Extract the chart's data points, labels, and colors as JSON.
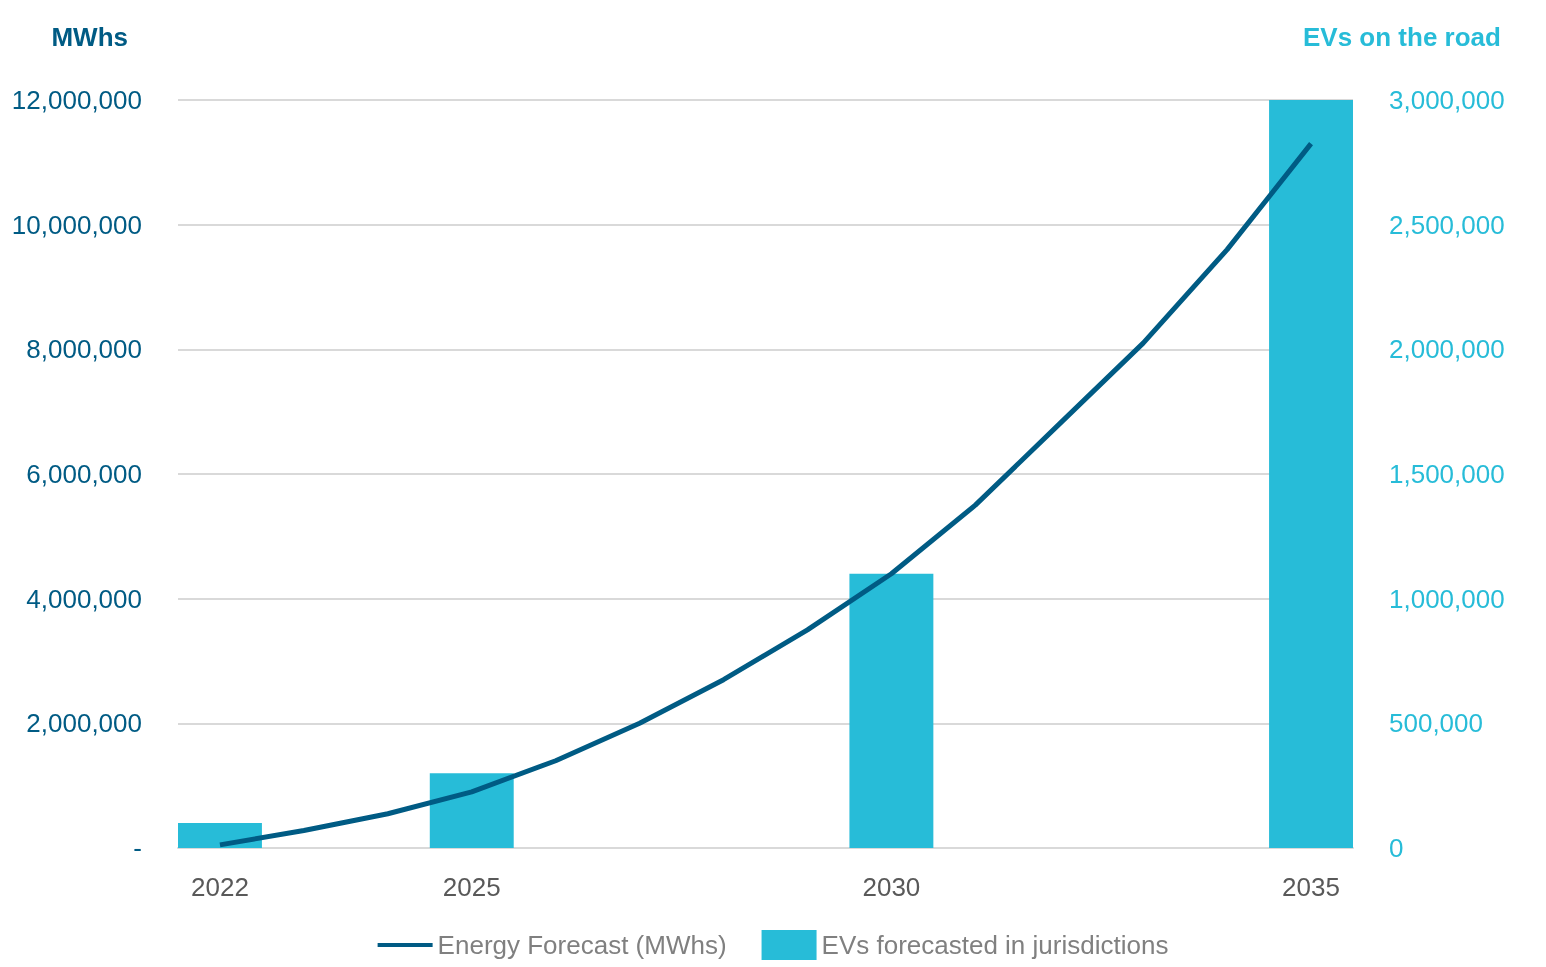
{
  "chart_data": {
    "type": "bar",
    "ylabel": "MWhs",
    "y2label": "EVs on the road",
    "categories": [
      "2022",
      null,
      null,
      "2025",
      null,
      null,
      null,
      null,
      "2030",
      null,
      null,
      null,
      null,
      "2035"
    ],
    "series": [
      {
        "name": "Energy Forecast (MWhs)",
        "type": "line",
        "color": "#005b84",
        "values": [
          50000,
          280000,
          550000,
          900000,
          1400000,
          2000000,
          2700000,
          3500000,
          4400000,
          5500000,
          6800000,
          8100000,
          9600000,
          11300000
        ]
      },
      {
        "name": "EVs forecasted in jurisdictions",
        "axis": "y2",
        "color": "#27bcd8",
        "values": [
          100000,
          null,
          null,
          300000,
          null,
          null,
          null,
          null,
          1100000,
          null,
          null,
          null,
          null,
          3000000
        ]
      }
    ],
    "ylim": [
      0,
      12000000
    ],
    "yticks": [
      {
        "value": 0,
        "label": "-"
      },
      {
        "value": 2000000,
        "label": "2,000,000"
      },
      {
        "value": 4000000,
        "label": "4,000,000"
      },
      {
        "value": 6000000,
        "label": "6,000,000"
      },
      {
        "value": 8000000,
        "label": "8,000,000"
      },
      {
        "value": 10000000,
        "label": "10,000,000"
      },
      {
        "value": 12000000,
        "label": "12,000,000"
      }
    ],
    "y2lim": [
      0,
      3000000
    ],
    "y2ticks": [
      0,
      {
        "value": 500000,
        "label": "500,000"
      },
      {
        "value": 1000000,
        "label": "1,000,000"
      },
      {
        "value": 1500000,
        "label": "1,500,000"
      },
      {
        "value": 2000000,
        "label": "2,000,000"
      },
      {
        "value": 2500000,
        "label": "2,500,000"
      },
      {
        "value": 3000000,
        "label": "3,000,000"
      }
    ],
    "grid": "y",
    "legend": "bottom",
    "marker": "none"
  }
}
